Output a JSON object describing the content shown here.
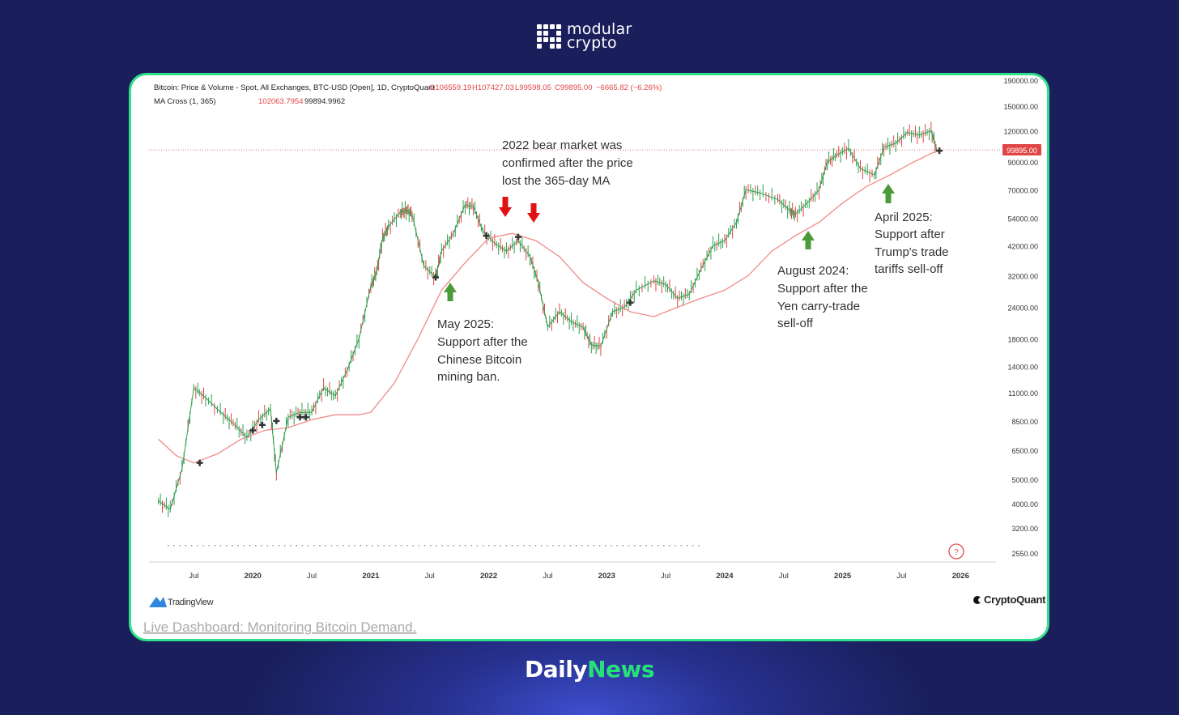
{
  "brand": {
    "line1": "modular",
    "line2": "crypto",
    "icon": "modular-grid-logo-icon"
  },
  "footer": {
    "part1": "Daily",
    "part2": "News"
  },
  "colors": {
    "accent": "#2ee08a",
    "background": "#1a1f5c",
    "ma_line": "#f08a8a",
    "candle_up": "#2e9e4f",
    "candle_down": "#e04646",
    "arrow_up": "#4c9a3a",
    "arrow_down": "#e01212"
  },
  "chart_data": {
    "type": "line",
    "title": "Bitcoin: Price & Volume - Spot, All Exchanges, BTC-USD [Open], 1D, CryptoQuant",
    "ohlc": {
      "o": "O106559.19",
      "h": "H107427.03",
      "l": "L99598.05",
      "c": "C99895.00",
      "change": "−6665.82 (−6.26%)"
    },
    "ma_label": "MA Cross (1, 365)",
    "ma_values": {
      "v1": "102063.7954",
      "v2": "99894.9962"
    },
    "current_price_label": "99895.00",
    "y_scale": "log",
    "y_ticks": [
      "190000.00",
      "150000.00",
      "120000.00",
      "90000.00",
      "70000.00",
      "54000.00",
      "42000.00",
      "32000.00",
      "24000.00",
      "18000.00",
      "14000.00",
      "11000.00",
      "8500.00",
      "6500.00",
      "5000.00",
      "4000.00",
      "3200.00",
      "2550.00"
    ],
    "x_ticks": [
      "Jul",
      "2020",
      "Jul",
      "2021",
      "Jul",
      "2022",
      "Jul",
      "2023",
      "Jul",
      "2024",
      "Jul",
      "2025",
      "Jul",
      "2026"
    ],
    "series": [
      {
        "values_x": [
          2019.2,
          2019.3,
          2019.4,
          2019.5,
          2019.6,
          2019.75,
          2019.85,
          2019.95,
          2020.05,
          2020.15,
          2020.2,
          2020.3,
          2020.4,
          2020.5,
          2020.6,
          2020.7,
          2020.8,
          2020.9,
          2021.0,
          2021.05,
          2021.1,
          2021.15,
          2021.25,
          2021.3,
          2021.35,
          2021.45,
          2021.55,
          2021.6,
          2021.7,
          2021.8,
          2021.87,
          2021.95,
          2022.05,
          2022.15,
          2022.25,
          2022.35,
          2022.42,
          2022.5,
          2022.6,
          2022.7,
          2022.8,
          2022.87,
          2022.95,
          2023.05,
          2023.15,
          2023.25,
          2023.4,
          2023.5,
          2023.6,
          2023.7,
          2023.8,
          2023.9,
          2024.0,
          2024.1,
          2024.18,
          2024.3,
          2024.45,
          2024.55,
          2024.6,
          2024.7,
          2024.8,
          2024.87,
          2024.95,
          2025.05,
          2025.15,
          2025.27,
          2025.35,
          2025.45,
          2025.55,
          2025.65,
          2025.75,
          2025.8
        ],
        "values_y": [
          4100,
          3800,
          5500,
          11500,
          10500,
          9000,
          8200,
          7300,
          8600,
          9500,
          5300,
          8800,
          9200,
          9200,
          11500,
          10700,
          13500,
          18000,
          29000,
          33000,
          45000,
          50000,
          57000,
          58000,
          56000,
          35000,
          31500,
          40000,
          47000,
          61000,
          60000,
          48000,
          43000,
          40000,
          44000,
          38000,
          30000,
          20000,
          23000,
          21000,
          20000,
          17000,
          16800,
          23000,
          24000,
          28000,
          30500,
          29500,
          26000,
          27000,
          34000,
          42000,
          44000,
          52000,
          70000,
          68000,
          64000,
          58000,
          56000,
          62000,
          70000,
          90000,
          96000,
          102000,
          85000,
          80000,
          103000,
          107000,
          118000,
          115000,
          120000,
          99895
        ]
      },
      {
        "name": "MA Cross (1, 365)",
        "values_x": [
          2019.2,
          2019.35,
          2019.5,
          2019.7,
          2019.9,
          2020.1,
          2020.3,
          2020.5,
          2020.7,
          2020.9,
          2021.0,
          2021.2,
          2021.4,
          2021.6,
          2021.8,
          2022.0,
          2022.2,
          2022.4,
          2022.6,
          2022.8,
          2023.0,
          2023.2,
          2023.4,
          2023.6,
          2023.8,
          2024.0,
          2024.2,
          2024.4,
          2024.6,
          2024.8,
          2025.0,
          2025.2,
          2025.4,
          2025.6,
          2025.8
        ],
        "values_y": [
          7200,
          6200,
          5800,
          6300,
          7200,
          7800,
          8000,
          8600,
          9000,
          9000,
          9200,
          12000,
          18000,
          28000,
          36000,
          45000,
          47000,
          44000,
          38000,
          30000,
          26000,
          23000,
          22000,
          24000,
          26000,
          28000,
          32000,
          40000,
          46000,
          52000,
          62000,
          72000,
          80000,
          90000,
          99895
        ]
      }
    ]
  },
  "annotations": [
    {
      "text": [
        "May 2025:",
        "Support after the",
        "Chinese Bitcoin",
        "mining ban."
      ],
      "arrow": "up"
    },
    {
      "text": [
        "2022 bear market was",
        "confirmed after the price",
        "lost the 365-day MA"
      ],
      "arrow": "down"
    },
    {
      "text": [
        "August 2024:",
        "Support after the",
        "Yen carry-trade",
        "sell-off"
      ],
      "arrow": "up"
    },
    {
      "text": [
        "April 2025:",
        "Support after",
        "Trump's trade",
        "tariffs sell-off"
      ],
      "arrow": "up"
    }
  ],
  "branding": {
    "tradingview": "TradingView",
    "cryptoquant": "CryptoQuant"
  },
  "link": {
    "text": "Live Dashboard: Monitoring Bitcoin Demand."
  }
}
